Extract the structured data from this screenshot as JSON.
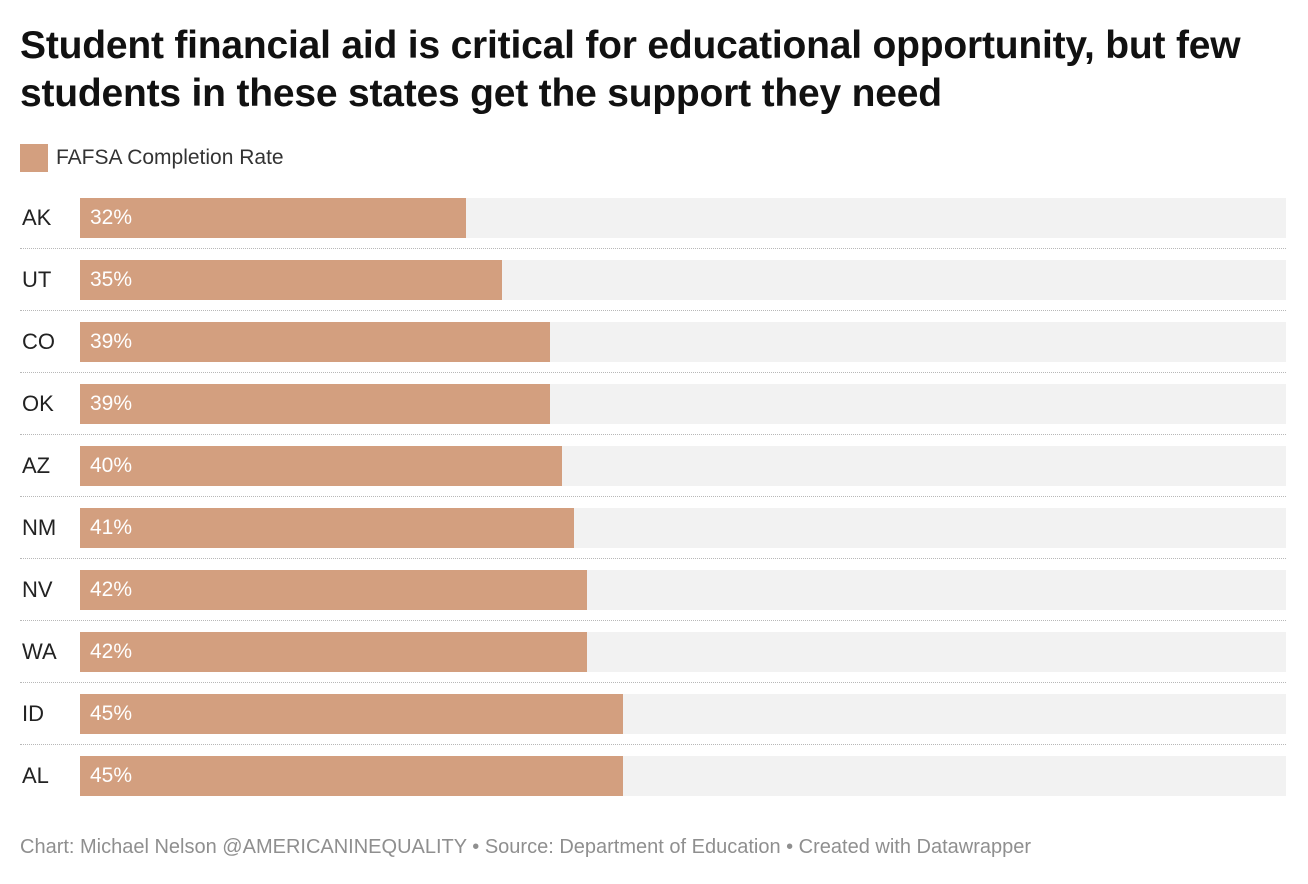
{
  "chart_data": {
    "type": "bar",
    "orientation": "horizontal",
    "title": "Student financial aid is critical for educational opportunity, but few students in these states get the support they need",
    "categories": [
      "AK",
      "UT",
      "CO",
      "OK",
      "AZ",
      "NM",
      "NV",
      "WA",
      "ID",
      "AL"
    ],
    "series": [
      {
        "name": "FAFSA Completion Rate",
        "values": [
          32,
          35,
          39,
          39,
          40,
          41,
          42,
          42,
          45,
          45
        ],
        "labels": [
          "32%",
          "35%",
          "39%",
          "39%",
          "40%",
          "41%",
          "42%",
          "42%",
          "45%",
          "45%"
        ],
        "color": "#d39f7f"
      }
    ],
    "xlim": [
      0,
      100
    ],
    "background_track_color": "#f2f2f2",
    "value_label_color": "#ffffff",
    "legend_position": "top-left",
    "grid": false
  },
  "footer": {
    "text": "Chart: Michael Nelson @AMERICANINEQUALITY • Source: Department of Education • Created with Datawrapper"
  }
}
